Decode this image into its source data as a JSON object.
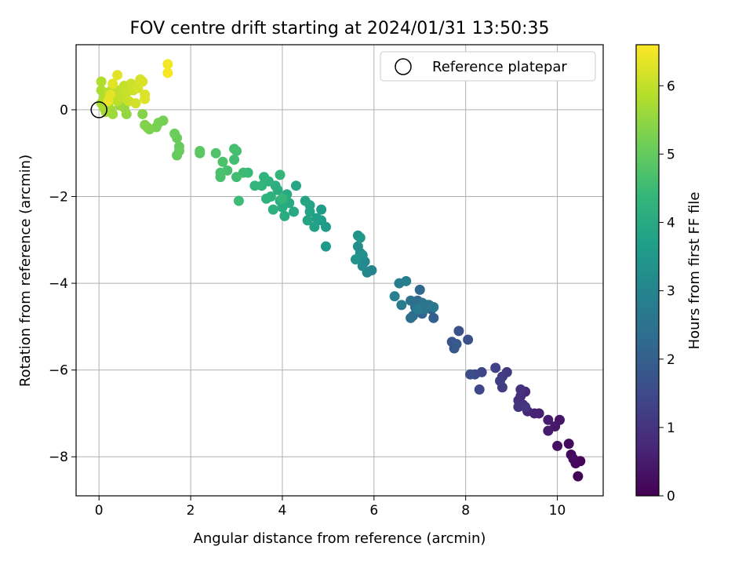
{
  "chart_data": {
    "type": "scatter",
    "title": "FOV centre drift starting at 2024/01/31 13:50:35",
    "xlabel": "Angular distance from reference (arcmin)",
    "ylabel": "Rotation from reference (arcmin)",
    "xlim": [
      -0.5,
      11.0
    ],
    "ylim": [
      -8.9,
      1.5
    ],
    "xticks": [
      0,
      2,
      4,
      6,
      8,
      10
    ],
    "yticks": [
      0,
      -2,
      -4,
      -6,
      -8
    ],
    "grid": true,
    "legend": {
      "placement": "top-right",
      "entries": [
        "Reference platepar"
      ]
    },
    "reference_point": {
      "x": 0,
      "y": 0
    },
    "colorbar": {
      "label": "Hours from first FF file",
      "range": [
        0,
        6.6
      ],
      "ticks": [
        0,
        1,
        2,
        3,
        4,
        5,
        6
      ],
      "colormap": "viridis",
      "colors": [
        "#440154",
        "#482878",
        "#3e4989",
        "#31688e",
        "#26828e",
        "#1f9e89",
        "#35b779",
        "#6ece58",
        "#b5de2b",
        "#fde725"
      ]
    },
    "points": [
      {
        "x": 10.45,
        "y": -8.45,
        "t": 0.05
      },
      {
        "x": 10.5,
        "y": -8.1,
        "t": 0.1
      },
      {
        "x": 10.4,
        "y": -8.15,
        "t": 0.12
      },
      {
        "x": 10.3,
        "y": -7.95,
        "t": 0.15
      },
      {
        "x": 10.25,
        "y": -7.7,
        "t": 0.2
      },
      {
        "x": 10.35,
        "y": -8.05,
        "t": 0.22
      },
      {
        "x": 10.0,
        "y": -7.75,
        "t": 0.3
      },
      {
        "x": 10.05,
        "y": -7.15,
        "t": 0.4
      },
      {
        "x": 9.95,
        "y": -7.3,
        "t": 0.45
      },
      {
        "x": 9.8,
        "y": -7.4,
        "t": 0.5
      },
      {
        "x": 9.8,
        "y": -7.15,
        "t": 0.55
      },
      {
        "x": 9.6,
        "y": -7.0,
        "t": 0.6
      },
      {
        "x": 9.5,
        "y": -7.0,
        "t": 0.65
      },
      {
        "x": 9.35,
        "y": -6.95,
        "t": 0.7
      },
      {
        "x": 9.3,
        "y": -6.5,
        "t": 0.75
      },
      {
        "x": 9.25,
        "y": -6.8,
        "t": 0.8
      },
      {
        "x": 9.2,
        "y": -6.6,
        "t": 0.85
      },
      {
        "x": 9.15,
        "y": -6.7,
        "t": 0.9
      },
      {
        "x": 9.2,
        "y": -6.45,
        "t": 0.95
      },
      {
        "x": 9.15,
        "y": -6.85,
        "t": 1.0
      },
      {
        "x": 9.3,
        "y": -6.85,
        "t": 1.05
      },
      {
        "x": 8.9,
        "y": -6.05,
        "t": 1.1
      },
      {
        "x": 8.8,
        "y": -6.15,
        "t": 1.15
      },
      {
        "x": 8.8,
        "y": -6.4,
        "t": 1.2
      },
      {
        "x": 8.75,
        "y": -6.25,
        "t": 1.25
      },
      {
        "x": 8.65,
        "y": -5.95,
        "t": 1.3
      },
      {
        "x": 8.35,
        "y": -6.05,
        "t": 1.4
      },
      {
        "x": 8.3,
        "y": -6.45,
        "t": 1.45
      },
      {
        "x": 8.2,
        "y": -6.1,
        "t": 1.5
      },
      {
        "x": 8.1,
        "y": -6.1,
        "t": 1.55
      },
      {
        "x": 8.05,
        "y": -5.3,
        "t": 1.65
      },
      {
        "x": 7.85,
        "y": -5.1,
        "t": 1.7
      },
      {
        "x": 7.7,
        "y": -5.35,
        "t": 1.75
      },
      {
        "x": 7.75,
        "y": -5.5,
        "t": 1.8
      },
      {
        "x": 7.8,
        "y": -5.4,
        "t": 1.85
      },
      {
        "x": 7.3,
        "y": -4.8,
        "t": 2.0
      },
      {
        "x": 7.25,
        "y": -4.6,
        "t": 2.05
      },
      {
        "x": 7.15,
        "y": -4.5,
        "t": 2.1
      },
      {
        "x": 7.05,
        "y": -4.7,
        "t": 2.15
      },
      {
        "x": 7.0,
        "y": -4.15,
        "t": 2.2
      },
      {
        "x": 6.95,
        "y": -4.4,
        "t": 2.25
      },
      {
        "x": 6.9,
        "y": -4.55,
        "t": 2.3
      },
      {
        "x": 6.85,
        "y": -4.75,
        "t": 2.35
      },
      {
        "x": 6.8,
        "y": -4.8,
        "t": 2.4
      },
      {
        "x": 6.8,
        "y": -4.4,
        "t": 2.45
      },
      {
        "x": 7.05,
        "y": -4.45,
        "t": 2.5
      },
      {
        "x": 7.1,
        "y": -4.6,
        "t": 2.55
      },
      {
        "x": 7.2,
        "y": -4.5,
        "t": 2.6
      },
      {
        "x": 7.3,
        "y": -4.55,
        "t": 2.65
      },
      {
        "x": 6.95,
        "y": -4.6,
        "t": 2.7
      },
      {
        "x": 6.6,
        "y": -4.5,
        "t": 2.75
      },
      {
        "x": 6.55,
        "y": -4.0,
        "t": 2.8
      },
      {
        "x": 6.7,
        "y": -3.95,
        "t": 2.85
      },
      {
        "x": 6.45,
        "y": -4.3,
        "t": 2.9
      },
      {
        "x": 5.95,
        "y": -3.7,
        "t": 3.0
      },
      {
        "x": 5.85,
        "y": -3.75,
        "t": 3.05
      },
      {
        "x": 5.8,
        "y": -3.5,
        "t": 3.1
      },
      {
        "x": 5.75,
        "y": -3.6,
        "t": 3.15
      },
      {
        "x": 5.7,
        "y": -3.3,
        "t": 3.2
      },
      {
        "x": 5.65,
        "y": -3.15,
        "t": 3.25
      },
      {
        "x": 5.75,
        "y": -3.35,
        "t": 3.3
      },
      {
        "x": 5.65,
        "y": -2.9,
        "t": 3.35
      },
      {
        "x": 5.6,
        "y": -3.45,
        "t": 3.4
      },
      {
        "x": 5.7,
        "y": -2.95,
        "t": 3.45
      },
      {
        "x": 4.95,
        "y": -3.15,
        "t": 3.55
      },
      {
        "x": 4.95,
        "y": -2.7,
        "t": 3.6
      },
      {
        "x": 4.85,
        "y": -2.3,
        "t": 3.65
      },
      {
        "x": 4.85,
        "y": -2.55,
        "t": 3.7
      },
      {
        "x": 4.75,
        "y": -2.5,
        "t": 3.72
      },
      {
        "x": 4.7,
        "y": -2.7,
        "t": 3.75
      },
      {
        "x": 4.6,
        "y": -2.35,
        "t": 3.8
      },
      {
        "x": 4.55,
        "y": -2.55,
        "t": 3.82
      },
      {
        "x": 4.6,
        "y": -2.2,
        "t": 3.85
      },
      {
        "x": 4.5,
        "y": -2.1,
        "t": 3.88
      },
      {
        "x": 4.3,
        "y": -1.75,
        "t": 3.9
      },
      {
        "x": 4.25,
        "y": -2.35,
        "t": 3.95
      },
      {
        "x": 4.15,
        "y": -2.15,
        "t": 4.0
      },
      {
        "x": 4.1,
        "y": -1.95,
        "t": 4.02
      },
      {
        "x": 4.05,
        "y": -2.45,
        "t": 4.05
      },
      {
        "x": 4.0,
        "y": -2.25,
        "t": 4.08
      },
      {
        "x": 3.95,
        "y": -2.1,
        "t": 4.1
      },
      {
        "x": 3.9,
        "y": -1.85,
        "t": 4.12
      },
      {
        "x": 3.85,
        "y": -1.75,
        "t": 4.15
      },
      {
        "x": 3.8,
        "y": -2.3,
        "t": 4.18
      },
      {
        "x": 3.75,
        "y": -2.0,
        "t": 4.2
      },
      {
        "x": 3.7,
        "y": -1.65,
        "t": 4.22
      },
      {
        "x": 3.65,
        "y": -2.05,
        "t": 4.25
      },
      {
        "x": 3.6,
        "y": -1.55,
        "t": 4.28
      },
      {
        "x": 3.55,
        "y": -1.75,
        "t": 4.3
      },
      {
        "x": 3.4,
        "y": -1.75,
        "t": 4.32
      },
      {
        "x": 3.95,
        "y": -1.5,
        "t": 4.35
      },
      {
        "x": 4.0,
        "y": -2.05,
        "t": 4.38
      },
      {
        "x": 3.25,
        "y": -1.45,
        "t": 4.45
      },
      {
        "x": 3.15,
        "y": -1.45,
        "t": 4.5
      },
      {
        "x": 3.05,
        "y": -2.1,
        "t": 4.52
      },
      {
        "x": 3.0,
        "y": -1.55,
        "t": 4.55
      },
      {
        "x": 2.95,
        "y": -1.15,
        "t": 4.58
      },
      {
        "x": 3.0,
        "y": -0.95,
        "t": 4.6
      },
      {
        "x": 2.95,
        "y": -0.9,
        "t": 4.62
      },
      {
        "x": 2.8,
        "y": -1.4,
        "t": 4.65
      },
      {
        "x": 2.65,
        "y": -1.55,
        "t": 4.68
      },
      {
        "x": 2.65,
        "y": -1.45,
        "t": 4.7
      },
      {
        "x": 2.7,
        "y": -1.2,
        "t": 4.72
      },
      {
        "x": 2.55,
        "y": -1.0,
        "t": 4.75
      },
      {
        "x": 2.2,
        "y": -1.0,
        "t": 4.85
      },
      {
        "x": 2.2,
        "y": -0.95,
        "t": 4.9
      },
      {
        "x": 1.75,
        "y": -0.85,
        "t": 5.0
      },
      {
        "x": 1.7,
        "y": -1.05,
        "t": 5.02
      },
      {
        "x": 1.75,
        "y": -0.95,
        "t": 5.05
      },
      {
        "x": 1.7,
        "y": -0.65,
        "t": 5.08
      },
      {
        "x": 1.65,
        "y": -0.55,
        "t": 5.1
      },
      {
        "x": 1.4,
        "y": -0.25,
        "t": 5.2
      },
      {
        "x": 1.3,
        "y": -0.3,
        "t": 5.22
      },
      {
        "x": 1.25,
        "y": -0.4,
        "t": 5.25
      },
      {
        "x": 1.1,
        "y": -0.45,
        "t": 5.28
      },
      {
        "x": 1.05,
        "y": -0.4,
        "t": 5.3
      },
      {
        "x": 1.0,
        "y": -0.35,
        "t": 5.33
      },
      {
        "x": 0.95,
        "y": -0.1,
        "t": 5.35
      },
      {
        "x": 0.6,
        "y": -0.1,
        "t": 5.5
      },
      {
        "x": 0.55,
        "y": 0.05,
        "t": 5.55
      },
      {
        "x": 0.45,
        "y": 0.1,
        "t": 5.6
      },
      {
        "x": 0.3,
        "y": -0.1,
        "t": 5.62
      },
      {
        "x": 0.25,
        "y": 0.0,
        "t": 5.65
      },
      {
        "x": 0.2,
        "y": 0.1,
        "t": 5.68
      },
      {
        "x": 0.15,
        "y": -0.05,
        "t": 5.7
      },
      {
        "x": 0.1,
        "y": 0.05,
        "t": 5.72
      },
      {
        "x": 0.05,
        "y": 0.15,
        "t": 5.75
      },
      {
        "x": 0.1,
        "y": 0.25,
        "t": 5.78
      },
      {
        "x": 0.05,
        "y": 0.45,
        "t": 5.8
      },
      {
        "x": 0.05,
        "y": 0.65,
        "t": 5.82
      },
      {
        "x": 0.15,
        "y": 0.3,
        "t": 5.85
      },
      {
        "x": 0.2,
        "y": 0.4,
        "t": 5.88
      },
      {
        "x": 0.3,
        "y": 0.5,
        "t": 5.9
      },
      {
        "x": 0.35,
        "y": 0.3,
        "t": 5.92
      },
      {
        "x": 0.4,
        "y": 0.2,
        "t": 5.95
      },
      {
        "x": 0.45,
        "y": 0.45,
        "t": 5.97
      },
      {
        "x": 0.5,
        "y": 0.3,
        "t": 6.0
      },
      {
        "x": 0.55,
        "y": 0.55,
        "t": 6.02
      },
      {
        "x": 0.6,
        "y": 0.4,
        "t": 6.05
      },
      {
        "x": 0.65,
        "y": 0.2,
        "t": 6.08
      },
      {
        "x": 0.7,
        "y": 0.6,
        "t": 6.1
      },
      {
        "x": 0.75,
        "y": 0.45,
        "t": 6.12
      },
      {
        "x": 0.8,
        "y": 0.15,
        "t": 6.15
      },
      {
        "x": 0.85,
        "y": 0.5,
        "t": 6.18
      },
      {
        "x": 0.9,
        "y": 0.7,
        "t": 6.2
      },
      {
        "x": 0.95,
        "y": 0.65,
        "t": 6.22
      },
      {
        "x": 1.0,
        "y": 0.35,
        "t": 6.25
      },
      {
        "x": 1.0,
        "y": 0.25,
        "t": 6.28
      },
      {
        "x": 0.4,
        "y": 0.8,
        "t": 6.3
      },
      {
        "x": 0.3,
        "y": 0.6,
        "t": 6.32
      },
      {
        "x": 0.25,
        "y": 0.35,
        "t": 6.35
      },
      {
        "x": 0.2,
        "y": 0.2,
        "t": 6.38
      },
      {
        "x": 1.5,
        "y": 1.05,
        "t": 6.5
      },
      {
        "x": 1.5,
        "y": 0.85,
        "t": 6.55
      }
    ]
  }
}
